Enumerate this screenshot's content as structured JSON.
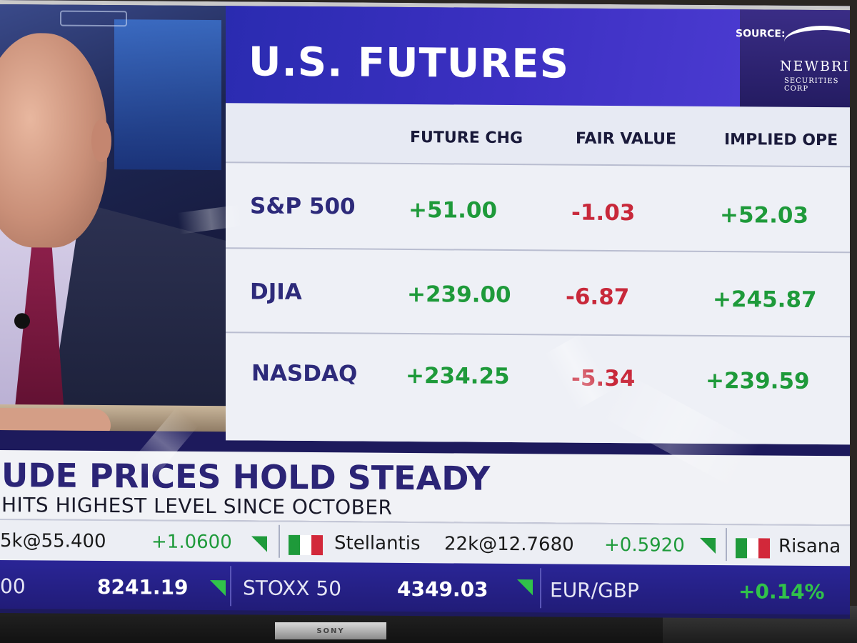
{
  "graphic": {
    "title": "U.S. FUTURES",
    "source_label": "SOURCE:",
    "source_logo": "NEWBRI",
    "source_logo_sub": "SECURITIES CORP"
  },
  "table": {
    "headers": [
      "FUTURE CHG",
      "FAIR VALUE",
      "IMPLIED OPE"
    ],
    "rows": [
      {
        "name": "S&P 500",
        "future_chg": "+51.00",
        "fair_value": "-1.03",
        "implied_open": "+52.03"
      },
      {
        "name": "DJIA",
        "future_chg": "+239.00",
        "fair_value": "-6.87",
        "implied_open": "+245.87"
      },
      {
        "name": "NASDAQ",
        "future_chg": "+234.25",
        "fair_value": "-5.34",
        "implied_open": "+239.59"
      }
    ]
  },
  "banner": {
    "headline": "UDE PRICES HOLD STEADY",
    "subheadline": "HITS HIGHEST LEVEL SINCE OCTOBER"
  },
  "ticker_top": {
    "item1_volume": "5k@55.400",
    "item1_change": "+1.0600",
    "item2_name": "Stellantis",
    "item2_volume": "22k@12.7680",
    "item2_change": "+0.5920",
    "item3_name": "Risana"
  },
  "ticker_bottom": {
    "item1_suffix": "00",
    "item1_value": "8241.19",
    "item2_name": "STOXX 50",
    "item2_value": "4349.03",
    "item3_name": "EUR/GBP",
    "item3_change": "+0.14%"
  },
  "tv": {
    "brand": "SONY"
  },
  "colors": {
    "positive": "#1e9a3a",
    "negative": "#c8283a",
    "header_blue": "#3c30c2",
    "name_purple": "#2d2a7a",
    "ticker_blue": "#2a2596"
  },
  "flags": {
    "italy": [
      "#1e9a3a",
      "#ffffff",
      "#d2283a"
    ]
  }
}
